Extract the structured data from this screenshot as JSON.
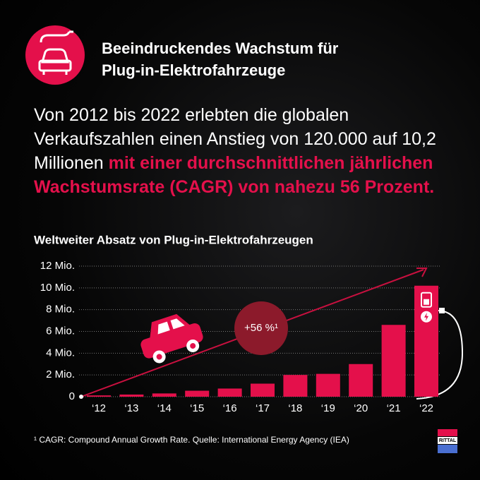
{
  "header": {
    "title": [
      "Beeindruckendes Wachstum für",
      "Plug-in-Elektrofahrzeuge"
    ]
  },
  "body": {
    "text": "Von 2012 bis 2022 erlebten die globalen Verkaufszahlen einen Anstieg von 120.000 auf 10,2 Millionen",
    "highlight": "mit einer durchschnittlichen jährlichen Wachstumsrate (CAGR) von nahezu 56 Prozent."
  },
  "chart_data": {
    "type": "bar",
    "title": "Weltweiter Absatz von Plug-in-Elektrofahrzeugen",
    "categories": [
      "‘12",
      "‘13",
      "‘14",
      "‘15",
      "‘16",
      "‘17",
      "‘18",
      "‘19",
      "‘20",
      "‘21",
      "‘22"
    ],
    "values": [
      0.12,
      0.2,
      0.3,
      0.55,
      0.75,
      1.2,
      2.0,
      2.1,
      3.0,
      6.6,
      10.2
    ],
    "color": "#e4104b",
    "ylim": [
      0,
      12
    ],
    "yticks": [
      0,
      {
        "value": 2,
        "label": "2 Mio."
      },
      {
        "value": 4,
        "label": "4 Mio."
      },
      {
        "value": 6,
        "label": "6 Mio."
      },
      {
        "value": 8,
        "label": "8 Mio."
      },
      {
        "value": 10,
        "label": "10 Mio."
      },
      {
        "value": 12,
        "label": "12 Mio."
      }
    ],
    "grid": true,
    "annotation": "+56 %¹"
  },
  "footnote": "¹ CAGR: Compound Annual Growth Rate. Quelle: International Energy Agency (IEA)",
  "logo": "RITTAL"
}
